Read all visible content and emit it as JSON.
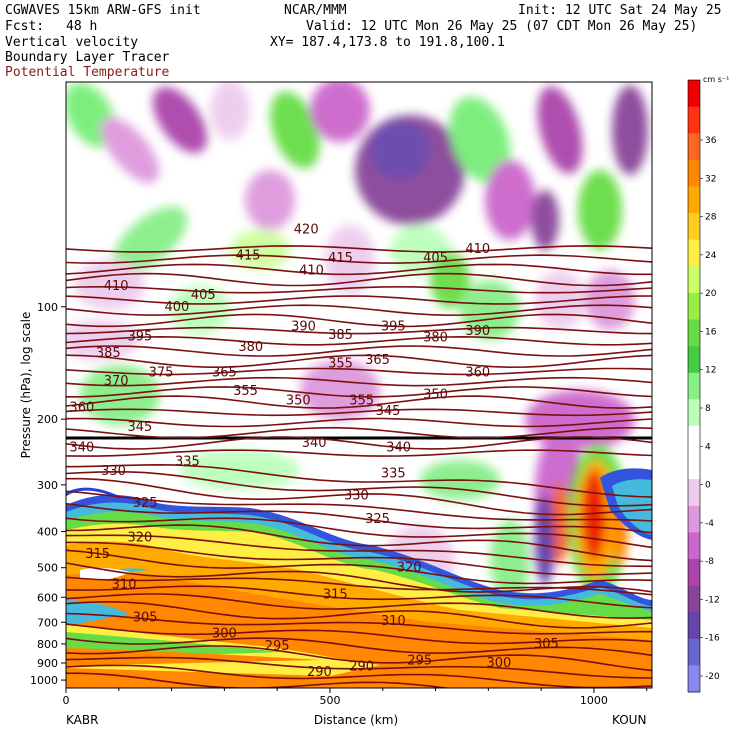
{
  "header": {
    "model": "CGWAVES 15km ARW-GFS init",
    "org": "NCAR/MMM",
    "init": "Init: 12 UTC Sat 24 May 25",
    "fcst_label": "Fcst:",
    "fcst_value": "48 h",
    "valid": "Valid: 12 UTC Mon 26 May 25 (07 CDT Mon 26 May 25)",
    "field1": "Vertical velocity",
    "xy": "XY= 187.4,173.8 to 191.8,100.1",
    "field2": "Boundary Layer Tracer",
    "field3": "Potential Temperature"
  },
  "chart_data": {
    "type": "heatmap",
    "xlabel": "Distance (km)",
    "ylabel": "Pressure (hPa), log scale",
    "x_ticks": [
      0,
      500,
      1000
    ],
    "x_range": [
      0,
      1110
    ],
    "y_ticks": [
      100,
      200,
      300,
      400,
      500,
      600,
      700,
      800,
      900,
      1000
    ],
    "y_range": [
      1050,
      25
    ],
    "y_scale": "log",
    "endpoints": {
      "left": "KABR",
      "right": "KOUN"
    },
    "colorbar": {
      "unit": "cm s⁻¹",
      "labels": [
        36,
        32,
        28,
        24,
        20,
        16,
        12,
        8,
        4,
        0,
        -4,
        -8,
        -12,
        -16,
        -20
      ],
      "colors": [
        "#ee0000",
        "#ff3311",
        "#ff6622",
        "#ff8800",
        "#ffaa00",
        "#ffcc22",
        "#ffee44",
        "#ccff66",
        "#99ee44",
        "#66dd44",
        "#44cc44",
        "#88ee88",
        "#bbffbb",
        "#ffffff",
        "#ffffff",
        "#eeccee",
        "#dd99dd",
        "#cc66cc",
        "#aa44aa",
        "#884499",
        "#6644aa",
        "#6666cc",
        "#8888ee"
      ]
    },
    "theta_labels": [
      {
        "x": 95,
        "p": 88,
        "v": "410"
      },
      {
        "x": 260,
        "p": 93,
        "v": "405"
      },
      {
        "x": 345,
        "p": 73,
        "v": "415"
      },
      {
        "x": 455,
        "p": 62,
        "v": "420"
      },
      {
        "x": 465,
        "p": 80,
        "v": "410"
      },
      {
        "x": 520,
        "p": 74,
        "v": "415"
      },
      {
        "x": 700,
        "p": 74,
        "v": "405"
      },
      {
        "x": 780,
        "p": 70,
        "v": "410"
      },
      {
        "x": 210,
        "p": 100,
        "v": "400"
      },
      {
        "x": 140,
        "p": 120,
        "v": "395"
      },
      {
        "x": 620,
        "p": 113,
        "v": "395"
      },
      {
        "x": 80,
        "p": 133,
        "v": "385"
      },
      {
        "x": 350,
        "p": 128,
        "v": "380"
      },
      {
        "x": 450,
        "p": 113,
        "v": "390"
      },
      {
        "x": 520,
        "p": 119,
        "v": "385"
      },
      {
        "x": 700,
        "p": 121,
        "v": "380"
      },
      {
        "x": 780,
        "p": 116,
        "v": "390"
      },
      {
        "x": 95,
        "p": 158,
        "v": "370"
      },
      {
        "x": 180,
        "p": 150,
        "v": "375"
      },
      {
        "x": 300,
        "p": 150,
        "v": "365"
      },
      {
        "x": 520,
        "p": 142,
        "v": "355"
      },
      {
        "x": 590,
        "p": 139,
        "v": "365"
      },
      {
        "x": 780,
        "p": 150,
        "v": "360"
      },
      {
        "x": 340,
        "p": 168,
        "v": "355"
      },
      {
        "x": 440,
        "p": 178,
        "v": "350"
      },
      {
        "x": 560,
        "p": 178,
        "v": "355"
      },
      {
        "x": 610,
        "p": 190,
        "v": "345"
      },
      {
        "x": 700,
        "p": 172,
        "v": "350"
      },
      {
        "x": 30,
        "p": 186,
        "v": "360"
      },
      {
        "x": 140,
        "p": 210,
        "v": "345"
      },
      {
        "x": 30,
        "p": 238,
        "v": "340"
      },
      {
        "x": 470,
        "p": 232,
        "v": "340"
      },
      {
        "x": 630,
        "p": 238,
        "v": "340"
      },
      {
        "x": 230,
        "p": 260,
        "v": "335"
      },
      {
        "x": 620,
        "p": 280,
        "v": "335"
      },
      {
        "x": 90,
        "p": 275,
        "v": "330"
      },
      {
        "x": 550,
        "p": 320,
        "v": "330"
      },
      {
        "x": 150,
        "p": 335,
        "v": "325"
      },
      {
        "x": 590,
        "p": 370,
        "v": "325"
      },
      {
        "x": 140,
        "p": 415,
        "v": "320"
      },
      {
        "x": 650,
        "p": 500,
        "v": "320"
      },
      {
        "x": 60,
        "p": 460,
        "v": "315"
      },
      {
        "x": 510,
        "p": 590,
        "v": "315"
      },
      {
        "x": 110,
        "p": 555,
        "v": "310"
      },
      {
        "x": 620,
        "p": 695,
        "v": "310"
      },
      {
        "x": 150,
        "p": 680,
        "v": "305"
      },
      {
        "x": 910,
        "p": 800,
        "v": "305"
      },
      {
        "x": 300,
        "p": 750,
        "v": "300"
      },
      {
        "x": 820,
        "p": 900,
        "v": "300"
      },
      {
        "x": 400,
        "p": 810,
        "v": "295"
      },
      {
        "x": 670,
        "p": 885,
        "v": "295"
      },
      {
        "x": 480,
        "p": 950,
        "v": "290"
      },
      {
        "x": 560,
        "p": 920,
        "v": "290"
      }
    ]
  }
}
